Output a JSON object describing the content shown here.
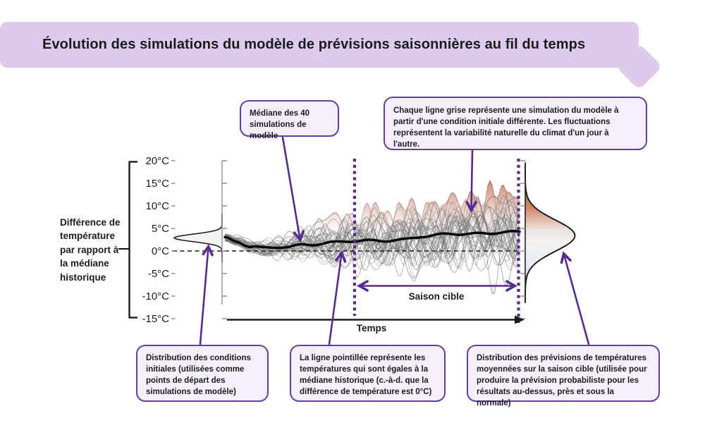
{
  "banner": {
    "title": "Évolution des simulations du modèle de prévisions saisonnières au fil du temps",
    "bg_color": "#dccbed"
  },
  "colors": {
    "accent_purple": "#572c90",
    "callout_border": "#6240a3",
    "callout_fill": "#f5effb",
    "median_line": "#000000",
    "simulation_gray": "#6e6e6e",
    "warm_red": "#b0492c",
    "cool_blue": "#9fbad6"
  },
  "y_axis": {
    "label": "Différence de\ntempérature\npar rapport à\nla médiane\nhistorique",
    "tick_labels": [
      "20°C",
      "15°C",
      "10°C",
      "5°C",
      "0°C",
      "-5°C",
      "-10°C",
      "-15°C"
    ]
  },
  "x_axis": {
    "label": "Temps"
  },
  "chart_data": {
    "type": "line",
    "title": "Évolution des simulations du modèle de prévisions saisonnières au fil du temps",
    "ylabel": "Différence de température par rapport à la médiane historique",
    "xlabel": "Temps",
    "ylim": [
      -15,
      20
    ],
    "y_ticks_c": [
      20,
      15,
      10,
      5,
      0,
      -5,
      -10,
      -15
    ],
    "zero_reference_c": 0,
    "grid": false,
    "n_simulations": 40,
    "median_keypoints": {
      "t": [
        0,
        0.04,
        0.09,
        0.14,
        0.2,
        0.28,
        0.36,
        0.44,
        0.52,
        0.6,
        0.68,
        0.78,
        0.88,
        1
      ],
      "value_c": [
        3.0,
        2.2,
        1.0,
        0.55,
        0.8,
        1.5,
        1.9,
        2.1,
        2.3,
        2.6,
        3.2,
        3.8,
        4.0,
        4.1
      ]
    },
    "initial_distribution": {
      "center_c": 2.9,
      "sd_c": 1.2
    },
    "forecast_distribution": {
      "center_c": 3.4,
      "sd_c": 4.9
    },
    "envelope_max_c": 15,
    "envelope_min_c": -11,
    "target_season": {
      "label": "Saison cible",
      "start_t": 0.44,
      "end_t": 1
    }
  },
  "callouts": {
    "median": {
      "text": "Médiane des 40\nsimulations de modèle"
    },
    "simulations": {
      "text": "Chaque ligne grise représente une simulation du modèle à partir d'une condition initiale différente. Les fluctuations représentent la variabilité naturelle du climat d'un jour à l'autre."
    },
    "initial_conditions": {
      "text": "Distribution des conditions initiales (utilisées comme points de départ des simulations de modèle)"
    },
    "zero_line": {
      "text": "La ligne pointillée représente les températures qui sont égales à la médiane historique (c.-à-d. que la différence de température est 0°C)"
    },
    "forecast_distribution": {
      "text": "Distribution des prévisions de températures moyennées sur la saison cible (utilisée pour produire la prévision probabiliste pour les résultats au-dessus, près et sous la normale)"
    }
  }
}
